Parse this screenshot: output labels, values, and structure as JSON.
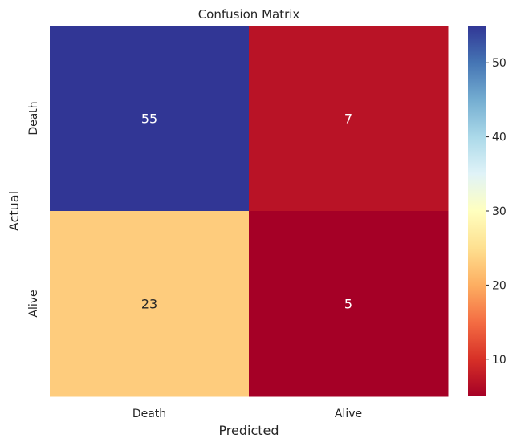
{
  "chart_data": {
    "type": "heatmap",
    "title": "Confusion Matrix",
    "xlabel": "Predicted",
    "ylabel": "Actual",
    "x_categories": [
      "Death",
      "Alive"
    ],
    "y_categories": [
      "Death",
      "Alive"
    ],
    "values": [
      [
        55,
        7
      ],
      [
        23,
        5
      ]
    ],
    "annotations": [
      "55",
      "7",
      "23",
      "5"
    ],
    "colormap": "RdYlBu",
    "colorbar": {
      "range": [
        5,
        55
      ],
      "ticks": [
        10,
        20,
        30,
        40,
        50
      ],
      "tick_labels": [
        "10",
        "20",
        "30",
        "40",
        "50"
      ]
    },
    "colors": {
      "stops": [
        "#a50026",
        "#d73027",
        "#f46d43",
        "#fdae61",
        "#fee090",
        "#ffffbf",
        "#e0f3f8",
        "#abd9e9",
        "#74add1",
        "#4575b4",
        "#313695"
      ],
      "annotation_light": "#ffffff",
      "annotation_dark": "#262626",
      "text": "#262626"
    }
  }
}
